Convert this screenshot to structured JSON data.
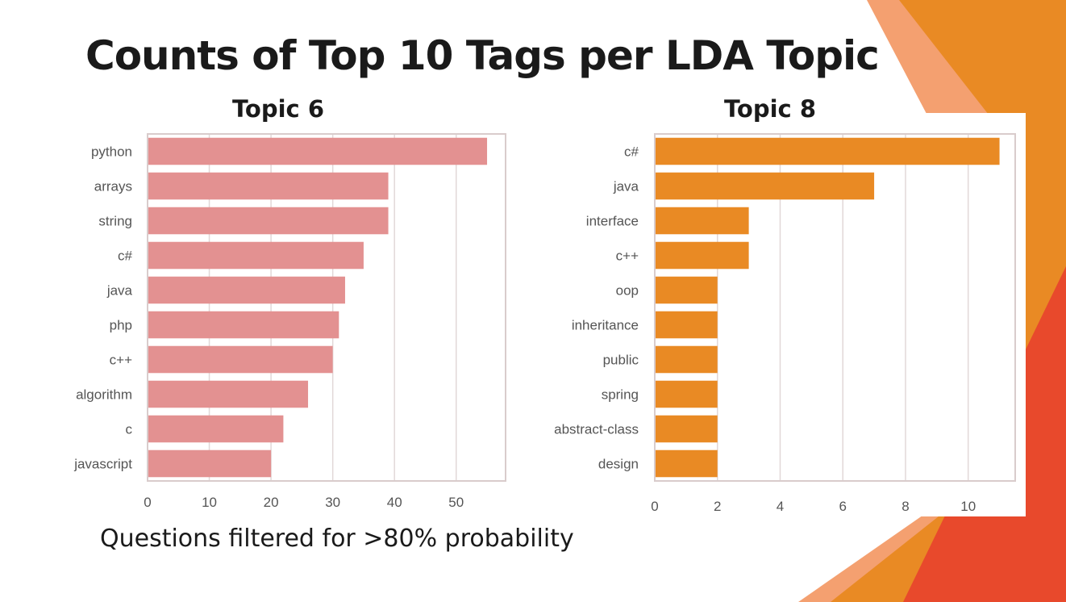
{
  "slide": {
    "title": "Counts of Top 10 Tags per LDA Topic",
    "caption": "Questions filtered for >80% probability",
    "colors": {
      "accent_orange": "#e98a24",
      "accent_red": "#e8492c",
      "accent_light": "#f4a070"
    }
  },
  "chart_data": [
    {
      "type": "bar",
      "orientation": "horizontal",
      "title": "Topic 6",
      "categories": [
        "python",
        "arrays",
        "string",
        "c#",
        "java",
        "php",
        "c++",
        "algorithm",
        "c",
        "javascript"
      ],
      "values": [
        55,
        39,
        39,
        35,
        32,
        31,
        30,
        26,
        22,
        20
      ],
      "xlim": [
        0,
        58
      ],
      "xticks": [
        0,
        10,
        20,
        30,
        40,
        50
      ],
      "xlabel": "",
      "ylabel": "",
      "grid": "vertical",
      "color": "#e39191"
    },
    {
      "type": "bar",
      "orientation": "horizontal",
      "title": "Topic 8",
      "categories": [
        "c#",
        "java",
        "interface",
        "c++",
        "oop",
        "inheritance",
        "public",
        "spring",
        "abstract-class",
        "design"
      ],
      "values": [
        11,
        7,
        3,
        3,
        2,
        2,
        2,
        2,
        2,
        2
      ],
      "xlim": [
        0,
        11.5
      ],
      "xticks": [
        0,
        2,
        4,
        6,
        8,
        10
      ],
      "xlabel": "",
      "ylabel": "",
      "grid": "vertical",
      "color": "#e98a24"
    }
  ]
}
